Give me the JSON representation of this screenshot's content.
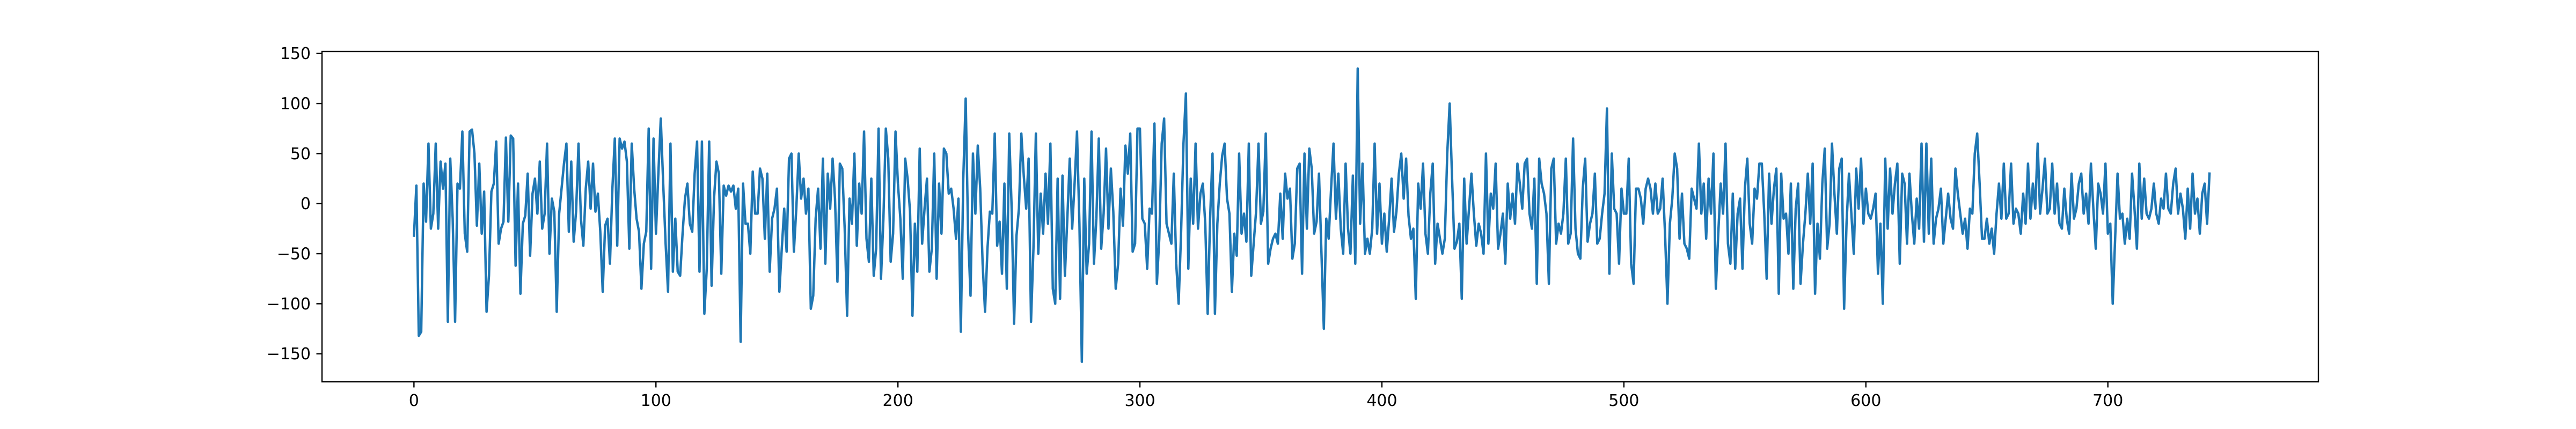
{
  "chart_data": {
    "type": "line",
    "title": "",
    "xlabel": "",
    "ylabel": "",
    "xlim": [
      -38,
      787
    ],
    "ylim": [
      -178,
      152
    ],
    "xticks": [
      0,
      100,
      200,
      300,
      400,
      500,
      600,
      700
    ],
    "yticks": [
      -150,
      -100,
      -50,
      0,
      50,
      100,
      150
    ],
    "xtick_labels": [
      "0",
      "100",
      "200",
      "300",
      "400",
      "500",
      "600",
      "700"
    ],
    "ytick_labels": [
      "−150",
      "−100",
      "−50",
      "0",
      "50",
      "100",
      "150"
    ],
    "grid": false,
    "legend": null,
    "series": [
      {
        "color": "#1f77b4",
        "x_start": 0,
        "x_step": 1,
        "y": [
          -32,
          18,
          -132,
          -128,
          20,
          -18,
          60,
          -25,
          -10,
          60,
          -25,
          42,
          15,
          40,
          -118,
          45,
          -15,
          -118,
          20,
          15,
          72,
          -30,
          -48,
          72,
          74,
          50,
          -22,
          40,
          -30,
          12,
          -108,
          -72,
          12,
          20,
          62,
          -40,
          -25,
          -18,
          66,
          -18,
          68,
          65,
          -62,
          20,
          -90,
          -20,
          -12,
          30,
          -52,
          10,
          25,
          -10,
          42,
          -25,
          -10,
          60,
          -50,
          5,
          -8,
          -108,
          -10,
          15,
          40,
          60,
          -28,
          42,
          -38,
          -8,
          60,
          -15,
          -42,
          15,
          42,
          -5,
          40,
          -8,
          10,
          -28,
          -88,
          -22,
          -15,
          -60,
          15,
          65,
          -42,
          65,
          55,
          62,
          42,
          -45,
          60,
          15,
          -15,
          -28,
          -85,
          -40,
          -28,
          75,
          -65,
          65,
          -30,
          30,
          85,
          20,
          -40,
          -88,
          60,
          -68,
          -15,
          -68,
          -72,
          -30,
          5,
          20,
          -20,
          -28,
          30,
          62,
          -68,
          62,
          -110,
          -65,
          62,
          -82,
          5,
          42,
          30,
          -70,
          18,
          8,
          18,
          12,
          18,
          -5,
          15,
          -138,
          20,
          -20,
          -20,
          -50,
          32,
          -10,
          -10,
          35,
          25,
          -35,
          30,
          -68,
          -15,
          -5,
          15,
          -88,
          -45,
          -5,
          -48,
          45,
          50,
          -48,
          -5,
          50,
          5,
          25,
          -10,
          15,
          -105,
          -92,
          -15,
          15,
          -45,
          45,
          -60,
          30,
          -5,
          45,
          5,
          -78,
          40,
          35,
          -25,
          -112,
          5,
          -20,
          50,
          -42,
          20,
          -10,
          72,
          -35,
          -58,
          25,
          -72,
          -45,
          75,
          -75,
          -15,
          75,
          45,
          -58,
          -30,
          72,
          20,
          -15,
          -75,
          45,
          25,
          -8,
          -112,
          -20,
          -68,
          55,
          -40,
          -5,
          25,
          -68,
          -45,
          50,
          -75,
          20,
          -30,
          55,
          50,
          10,
          15,
          -5,
          -35,
          5,
          -128,
          25,
          105,
          -30,
          -92,
          50,
          -10,
          58,
          15,
          -60,
          -108,
          -45,
          -8,
          -10,
          70,
          -42,
          -18,
          -70,
          20,
          -85,
          70,
          -5,
          -120,
          -32,
          -5,
          70,
          28,
          -5,
          45,
          -118,
          -45,
          70,
          -50,
          10,
          -30,
          30,
          -20,
          60,
          -85,
          -100,
          25,
          -95,
          28,
          -72,
          -15,
          45,
          -25,
          20,
          72,
          -20,
          -158,
          25,
          -70,
          -40,
          72,
          -60,
          -15,
          65,
          -45,
          -10,
          55,
          -25,
          35,
          -8,
          -85,
          -60,
          15,
          -22,
          58,
          30,
          70,
          -48,
          -40,
          75,
          75,
          -15,
          -20,
          -65,
          -5,
          -10,
          80,
          -80,
          -35,
          60,
          85,
          -20,
          -30,
          -40,
          30,
          -60,
          -100,
          -30,
          60,
          110,
          -65,
          25,
          -20,
          60,
          -25,
          10,
          20,
          -20,
          -110,
          -15,
          50,
          -110,
          -20,
          20,
          48,
          60,
          5,
          -10,
          -88,
          -30,
          -52,
          50,
          -30,
          -10,
          -38,
          60,
          -72,
          -40,
          -8,
          60,
          -20,
          -8,
          70,
          -60,
          -45,
          -35,
          -30,
          -40,
          10,
          -35,
          30,
          5,
          15,
          -55,
          -40,
          35,
          40,
          -70,
          50,
          -25,
          55,
          35,
          -30,
          -18,
          30,
          -48,
          -125,
          -15,
          -35,
          15,
          60,
          -15,
          30,
          -25,
          -50,
          40,
          -25,
          -50,
          28,
          -60,
          135,
          -20,
          40,
          -50,
          -35,
          -50,
          -25,
          60,
          -30,
          20,
          -40,
          -10,
          -48,
          -15,
          25,
          -28,
          -8,
          30,
          50,
          5,
          45,
          -12,
          -35,
          -25,
          -95,
          20,
          -5,
          40,
          -30,
          -50,
          10,
          40,
          -60,
          -20,
          -35,
          -50,
          -35,
          50,
          100,
          25,
          -45,
          -38,
          -20,
          -95,
          25,
          -40,
          -5,
          30,
          -10,
          -42,
          -20,
          -30,
          -50,
          50,
          -40,
          10,
          -5,
          40,
          -45,
          -30,
          -10,
          -60,
          20,
          -15,
          10,
          -20,
          40,
          20,
          -5,
          40,
          45,
          -10,
          -25,
          25,
          -80,
          45,
          20,
          10,
          -10,
          -80,
          35,
          45,
          -40,
          -20,
          -30,
          -10,
          45,
          -40,
          -30,
          65,
          -25,
          -50,
          -55,
          15,
          45,
          -38,
          -20,
          -10,
          30,
          -40,
          -35,
          -10,
          10,
          95,
          -70,
          50,
          -5,
          -10,
          -60,
          15,
          -10,
          -10,
          45,
          -60,
          -80,
          15,
          15,
          5,
          -20,
          15,
          25,
          15,
          -10,
          20,
          -10,
          -5,
          25,
          -30,
          -100,
          -20,
          5,
          50,
          35,
          -35,
          10,
          -40,
          -45,
          -55,
          15,
          5,
          -5,
          60,
          -10,
          20,
          -35,
          25,
          -10,
          50,
          -85,
          -30,
          20,
          -10,
          60,
          -40,
          -60,
          10,
          -65,
          -10,
          5,
          -65,
          15,
          45,
          -20,
          -40,
          15,
          5,
          40,
          40,
          -10,
          -75,
          30,
          -20,
          15,
          35,
          -90,
          30,
          -15,
          -10,
          -50,
          20,
          -85,
          -5,
          20,
          -80,
          -40,
          -10,
          30,
          -20,
          40,
          -90,
          -20,
          -55,
          20,
          55,
          -45,
          -20,
          60,
          10,
          -30,
          35,
          45,
          -105,
          -20,
          30,
          -10,
          -50,
          35,
          -5,
          45,
          -20,
          15,
          -10,
          -15,
          -5,
          10,
          -70,
          -20,
          -100,
          45,
          -25,
          35,
          -10,
          20,
          40,
          -60,
          30,
          20,
          -40,
          30,
          -10,
          -40,
          5,
          -25,
          60,
          -38,
          60,
          -30,
          45,
          -40,
          -15,
          -5,
          15,
          -40,
          -15,
          10,
          -15,
          -25,
          35,
          10,
          -10,
          -30,
          -15,
          -45,
          -5,
          -10,
          50,
          70,
          20,
          -35,
          -35,
          -15,
          -40,
          -25,
          -50,
          -10,
          20,
          -15,
          40,
          -15,
          -10,
          40,
          -20,
          -5,
          -10,
          -30,
          10,
          -20,
          40,
          -15,
          20,
          -5,
          60,
          -10,
          15,
          45,
          -10,
          -5,
          40,
          -10,
          20,
          -20,
          -25,
          15,
          -15,
          -30,
          30,
          -15,
          -5,
          20,
          30,
          -10,
          10,
          -20,
          40,
          -5,
          -45,
          20,
          10,
          -10,
          40,
          -30,
          -20,
          -100,
          -35,
          30,
          -15,
          -10,
          -40,
          -15,
          -35,
          30,
          -5,
          -45,
          40,
          -15,
          25,
          -10,
          -15,
          -5,
          20,
          -10,
          -20,
          5,
          -5,
          30,
          -5,
          -10,
          20,
          35,
          -10,
          10,
          -5,
          -35,
          15,
          -25,
          30,
          -10,
          5,
          -30,
          10,
          20,
          -20,
          30
        ]
      }
    ]
  }
}
